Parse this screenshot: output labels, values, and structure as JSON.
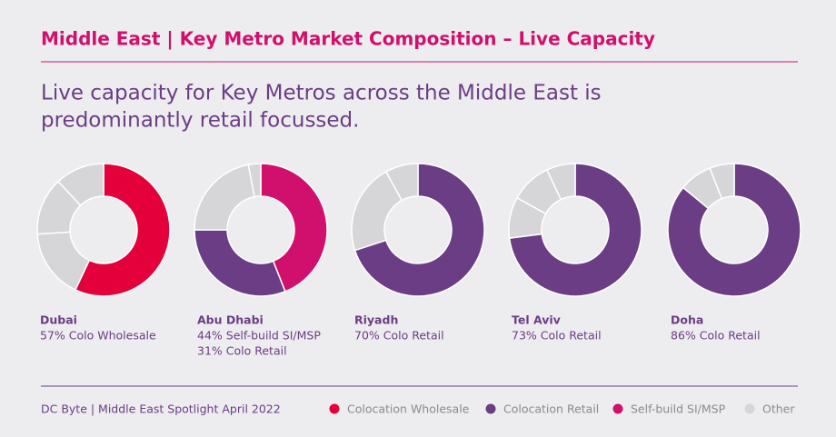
{
  "title": "Middle East | Key Metro Market Composition – Live Capacity",
  "subtitle": [
    "Live capacity for Key Metros across the Middle East is",
    "predominantly retail focussed."
  ],
  "source": "DC Byte | Middle East Spotlight April 2022",
  "legend": [
    {
      "name": "Colocation Wholesale",
      "color": "#e4003a"
    },
    {
      "name": "Colocation Retail",
      "color": "#6b3d85"
    },
    {
      "name": "Self-build SI/MSP",
      "color": "#d0106c"
    },
    {
      "name": "Other",
      "color": "#d6d6d8"
    }
  ],
  "chart_data": [
    {
      "type": "pie",
      "title": "Dubai",
      "annotations": [
        "57% Colo Wholesale"
      ],
      "values": [
        57,
        17,
        14,
        12
      ],
      "colors": [
        "#e4003a",
        "#d6d6d8",
        "#d6d6d8",
        "#d6d6d8"
      ]
    },
    {
      "type": "pie",
      "title": "Abu Dhabi",
      "annotations": [
        "44% Self-build SI/MSP",
        "31% Colo Retail"
      ],
      "values": [
        44,
        31,
        22,
        3
      ],
      "colors": [
        "#d0106c",
        "#6b3d85",
        "#d6d6d8",
        "#d6d6d8"
      ]
    },
    {
      "type": "pie",
      "title": "Riyadh",
      "annotations": [
        "70% Colo Retail"
      ],
      "values": [
        70,
        22,
        8
      ],
      "colors": [
        "#6b3d85",
        "#d6d6d8",
        "#d6d6d8"
      ]
    },
    {
      "type": "pie",
      "title": "Tel Aviv",
      "annotations": [
        "73% Colo Retail"
      ],
      "values": [
        73,
        10,
        10,
        7
      ],
      "colors": [
        "#6b3d85",
        "#d6d6d8",
        "#d6d6d8",
        "#d6d6d8"
      ]
    },
    {
      "type": "pie",
      "title": "Doha",
      "annotations": [
        "86% Colo Retail"
      ],
      "values": [
        86,
        8,
        6
      ],
      "colors": [
        "#6b3d85",
        "#d6d6d8",
        "#d6d6d8"
      ]
    }
  ]
}
